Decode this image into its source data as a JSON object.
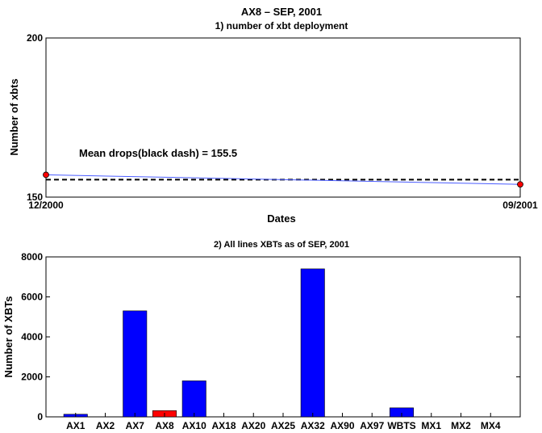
{
  "chart_data": [
    {
      "type": "line",
      "title": "AX8 – SEP, 2001",
      "subtitle": "1) number of xbt deployment",
      "xlabel": "Dates",
      "ylabel": "Number of xbts",
      "x_tick_labels": [
        "12/2000",
        "09/2001"
      ],
      "y_ticks": [
        150,
        200
      ],
      "ylim": [
        150,
        200
      ],
      "series": [
        {
          "x": [
            "12/2000",
            "09/2001"
          ],
          "values": [
            157,
            154
          ],
          "color": "#4a5cff",
          "marker_color": "#ff0000"
        }
      ],
      "mean_line": {
        "value": 155.5,
        "color": "#000000",
        "style": "dashed"
      },
      "annotation": "Mean drops(black dash) = 155.5",
      "grid": false
    },
    {
      "type": "bar",
      "title": "2) All lines XBTs as of SEP, 2001",
      "xlabel": "",
      "ylabel": "Number of XBTs",
      "categories": [
        "AX1",
        "AX2",
        "AX7",
        "AX8",
        "AX10",
        "AX18",
        "AX20",
        "AX25",
        "AX32",
        "AX90",
        "AX97",
        "WBTS",
        "MX1",
        "MX2",
        "MX4"
      ],
      "values": [
        130,
        0,
        5300,
        310,
        1800,
        0,
        0,
        0,
        7400,
        0,
        0,
        450,
        0,
        0,
        0
      ],
      "bar_colors": [
        "#0000ff",
        "#0000ff",
        "#0000ff",
        "#ff0000",
        "#0000ff",
        "#0000ff",
        "#0000ff",
        "#0000ff",
        "#0000ff",
        "#0000ff",
        "#0000ff",
        "#0000ff",
        "#0000ff",
        "#0000ff",
        "#0000ff"
      ],
      "y_ticks": [
        0,
        2000,
        4000,
        6000,
        8000
      ],
      "ylim": [
        0,
        8000
      ],
      "grid": false
    }
  ]
}
